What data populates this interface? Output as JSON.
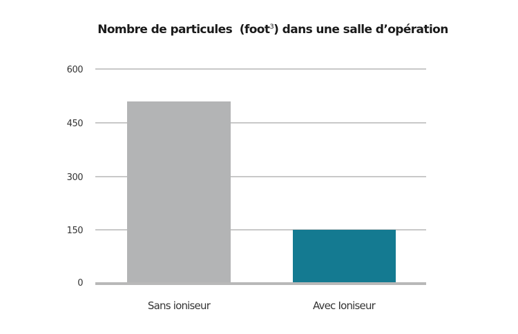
{
  "chart_data": {
    "type": "bar",
    "title": "Nombre de particules  (foot³) dans une salle d’opération",
    "title_main": "Nombre de particules  (foot",
    "title_sup": "3",
    "title_rest": ") dans une salle d’opération",
    "categories": [
      "Sans ioniseur",
      "Avec Ioniseur"
    ],
    "values": [
      510,
      150
    ],
    "colors": [
      "#b3b4b5",
      "#147a91"
    ],
    "xlabel": "",
    "ylabel": "",
    "ylim": [
      0,
      600
    ],
    "yticks": [
      "0",
      "150",
      "300",
      "450",
      "600"
    ],
    "grid": true,
    "legend": "none"
  }
}
